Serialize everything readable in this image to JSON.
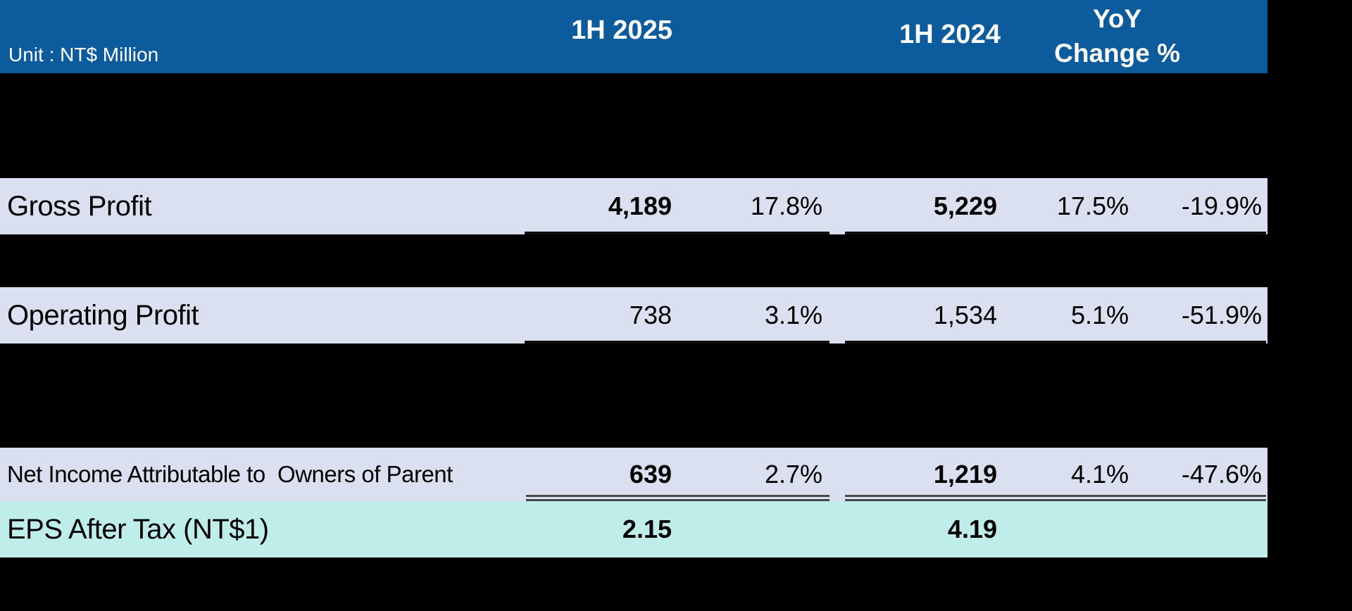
{
  "table": {
    "unit_label": "Unit : NT$ Million",
    "header": {
      "col_2025": "1H 2025",
      "col_2024": "1H 2024",
      "col_yoy_line1": "YoY",
      "col_yoy_line2": "Change %"
    },
    "rows": [
      {
        "label": "Gross Profit",
        "v2025": "4,189",
        "p2025": "17.8%",
        "v2024": "5,229",
        "p2024": "17.5%",
        "yoy": "-19.9%"
      },
      {
        "label": "Operating Profit",
        "v2025": "738",
        "p2025": "3.1%",
        "v2024": "1,534",
        "p2024": "5.1%",
        "yoy": "-51.9%"
      },
      {
        "label": "Net Income Attributable to  Owners of Parent",
        "v2025": "639",
        "p2025": "2.7%",
        "v2024": "1,219",
        "p2024": "4.1%",
        "yoy": "-47.6%"
      },
      {
        "label": "EPS After Tax (NT$1)",
        "v2025": "2.15",
        "p2025": "",
        "v2024": "4.19",
        "p2024": "",
        "yoy": ""
      }
    ],
    "colors": {
      "header_bg": "#0B5B9D",
      "header_text": "#FFFFFF",
      "row_bg": "#DBE0F1",
      "eps_row_bg": "#BFEDE9",
      "canvas_bg": "#000000",
      "text": "#000000",
      "rule_single": "#0d0d0d",
      "rule_double": "#474747"
    }
  }
}
